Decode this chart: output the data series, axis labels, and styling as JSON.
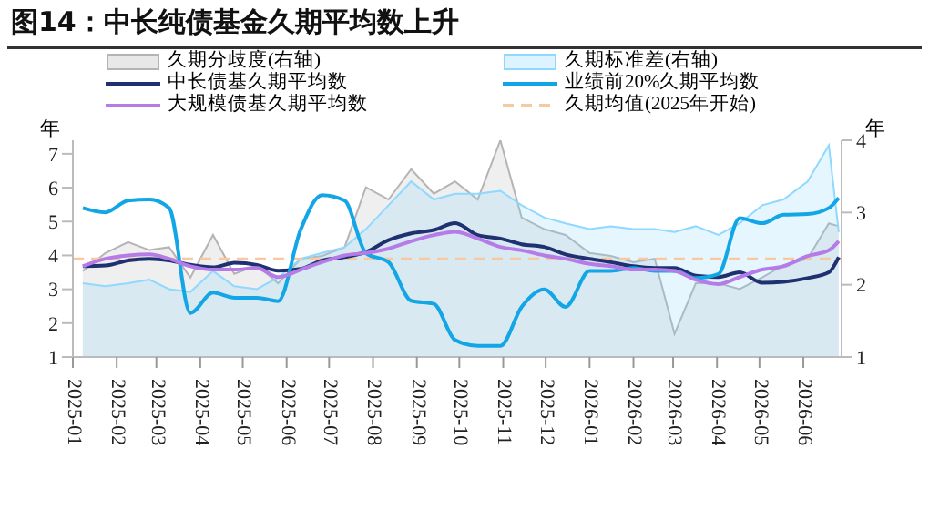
{
  "chart_data": {
    "type": "line",
    "title": "图14：中长纯债基金久期平均数上升",
    "ylabel": "年",
    "y2label": "年",
    "x": [
      "2025-01-08",
      "2025-01-24",
      "2025-02-09",
      "2025-02-24",
      "2025-03-10",
      "2025-03-25",
      "2025-04-10",
      "2025-04-25",
      "2025-05-11",
      "2025-05-26",
      "2025-06-11",
      "2025-06-26",
      "2025-07-12",
      "2025-07-27",
      "2025-08-12",
      "2025-08-28",
      "2025-09-13",
      "2025-09-28",
      "2025-10-14",
      "2025-10-30",
      "2025-11-14",
      "2025-11-30",
      "2025-12-15",
      "2026-01-01",
      "2026-01-16",
      "2026-02-01",
      "2026-02-16",
      "2026-03-02",
      "2026-03-17",
      "2026-04-02",
      "2026-04-17",
      "2026-05-03",
      "2026-05-18",
      "2026-06-04",
      "2026-06-19",
      "2026-06-26"
    ],
    "xlim": [
      "2025-01-01",
      "2026-06-28"
    ],
    "xticks": [
      "2025-01",
      "2025-02",
      "2025-03",
      "2025-04",
      "2025-05",
      "2025-06",
      "2025-07",
      "2025-08",
      "2025-09",
      "2025-10",
      "2025-11",
      "2025-12",
      "2026-01",
      "2026-02",
      "2026-03",
      "2026-04",
      "2026-05",
      "2026-06"
    ],
    "ylim": [
      1,
      7.4
    ],
    "yticks": [
      1,
      2,
      3,
      4,
      5,
      6,
      7
    ],
    "y2lim": [
      1,
      4
    ],
    "y2ticks": [
      1,
      2,
      3,
      4
    ],
    "legend": "top",
    "marker": "none",
    "series": [
      {
        "name": "久期分歧度(右轴)",
        "type": "area",
        "axis": "y2",
        "color": "#b4b4b4",
        "values": [
          2.19,
          2.44,
          2.59,
          2.48,
          2.52,
          2.1,
          2.69,
          2.15,
          2.27,
          2.02,
          2.36,
          2.4,
          2.52,
          3.35,
          3.18,
          3.6,
          3.26,
          3.43,
          3.18,
          4.0,
          2.93,
          2.77,
          2.69,
          2.44,
          2.4,
          2.31,
          2.36,
          1.32,
          2.02,
          2.02,
          1.94,
          2.1,
          2.27,
          2.36,
          2.85,
          2.81
        ]
      },
      {
        "name": "久期标准差(右轴)",
        "type": "area",
        "axis": "y2",
        "color": "#8fd8ff",
        "values": [
          2.02,
          1.98,
          2.02,
          2.07,
          1.94,
          1.9,
          2.19,
          1.98,
          1.94,
          2.1,
          2.36,
          2.44,
          2.52,
          2.77,
          3.1,
          3.43,
          3.18,
          3.26,
          3.26,
          3.3,
          3.1,
          2.93,
          2.85,
          2.77,
          2.81,
          2.77,
          2.77,
          2.73,
          2.81,
          2.69,
          2.85,
          3.1,
          3.18,
          3.43,
          3.93,
          2.73
        ]
      },
      {
        "name": "中长债基久期平均数",
        "color": "#1f3170",
        "values": [
          3.68,
          3.7,
          3.85,
          3.9,
          3.85,
          3.72,
          3.65,
          3.78,
          3.72,
          3.55,
          3.6,
          3.85,
          3.95,
          4.1,
          4.45,
          4.65,
          4.75,
          4.95,
          4.6,
          4.5,
          4.33,
          4.25,
          4.03,
          3.9,
          3.8,
          3.68,
          3.63,
          3.63,
          3.4,
          3.36,
          3.5,
          3.19,
          3.22,
          3.33,
          3.5,
          3.95
        ]
      },
      {
        "name": "业绩前20%久期平均数",
        "color": "#12a6e6",
        "values": [
          5.4,
          5.27,
          5.62,
          5.65,
          5.4,
          2.3,
          2.9,
          2.75,
          2.75,
          2.65,
          4.77,
          5.78,
          5.62,
          4.07,
          3.8,
          2.66,
          2.57,
          1.5,
          1.33,
          1.33,
          2.48,
          3.0,
          2.48,
          3.54,
          3.54,
          3.63,
          3.54,
          3.54,
          3.33,
          3.45,
          5.1,
          4.95,
          5.2,
          5.22,
          5.4,
          5.7
        ]
      },
      {
        "name": "大规模债基久期平均数",
        "color": "#b57ce8",
        "values": [
          3.68,
          3.9,
          4.0,
          4.03,
          3.9,
          3.68,
          3.58,
          3.58,
          3.63,
          3.36,
          3.58,
          3.8,
          4.0,
          4.07,
          4.2,
          4.42,
          4.6,
          4.7,
          4.5,
          4.25,
          4.15,
          4.0,
          3.9,
          3.75,
          3.68,
          3.58,
          3.58,
          3.54,
          3.28,
          3.15,
          3.36,
          3.58,
          3.68,
          3.98,
          4.15,
          4.42
        ]
      }
    ],
    "ref_lines": [
      {
        "axis": "y",
        "value": 3.9,
        "label": "久期均值(2025年开始)",
        "color": "#f8c8a0",
        "line_style": "dashed"
      }
    ]
  }
}
